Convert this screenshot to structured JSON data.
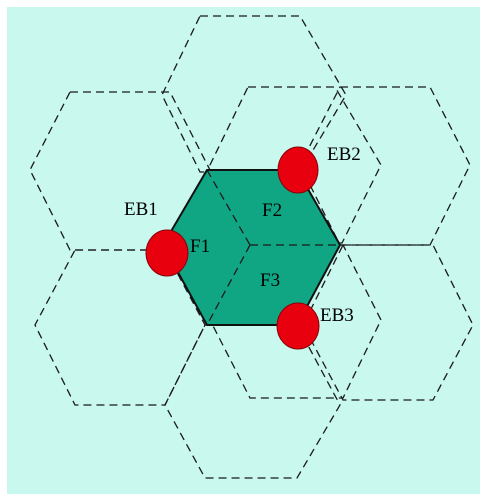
{
  "diagram": {
    "colors": {
      "background": "#c8f8ee",
      "frame": "#ffffff",
      "dashed_cells": "#1a1a1a",
      "center_cell_fill": "#10a683",
      "center_cell_stroke": "#111111",
      "station_fill": "#e8000f",
      "station_stroke": "#8a0008"
    },
    "sectors": {
      "f1": "F1",
      "f2": "F2",
      "f3": "F3"
    },
    "stations": {
      "eb1": "EB1",
      "eb2": "EB2",
      "eb3": "EB3"
    }
  }
}
